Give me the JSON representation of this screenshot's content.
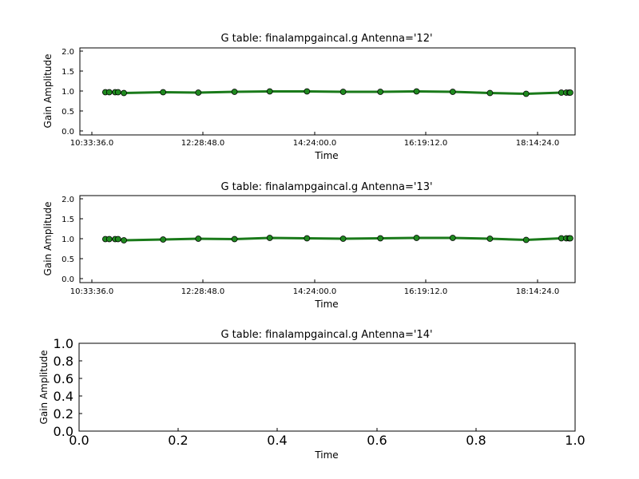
{
  "chart_data": [
    {
      "type": "line",
      "title": "G table: finalampgaincal.g      Antenna='12'",
      "xlabel": "Time",
      "ylabel": "Gain Amplitude",
      "ylim": [
        -0.1,
        2.1
      ],
      "y_ticks": [
        "0.0",
        "0.5",
        "1.0",
        "1.5",
        "2.0"
      ],
      "x_tick_labels": [
        "10:33:36.0",
        "12:28:48.0",
        "14:24:00.0",
        "16:19:12.0",
        "18:14:24.0"
      ],
      "xlim": [
        "10:13:00",
        "18:39:00"
      ],
      "grid": false,
      "line_color": "#1a7a1a",
      "marker_color": "#1f8a1f",
      "x": [
        "10:39:00",
        "10:43:00",
        "10:49:00",
        "10:52:00",
        "10:58:00",
        "11:38:00",
        "12:14:00",
        "12:51:00",
        "13:27:00",
        "14:05:00",
        "14:42:00",
        "15:20:00",
        "15:57:00",
        "16:34:00",
        "17:12:00",
        "17:49:00",
        "18:25:00",
        "18:30:00",
        "18:33:00",
        "18:34:00"
      ],
      "series": [
        {
          "values": [
            0.98,
            0.98,
            0.98,
            0.98,
            0.96,
            0.98,
            0.97,
            0.99,
            1.0,
            1.0,
            0.99,
            0.99,
            1.0,
            0.99,
            0.96,
            0.94,
            0.97,
            0.97,
            0.97,
            0.97
          ]
        }
      ]
    },
    {
      "type": "line",
      "title": "G table: finalampgaincal.g      Antenna='13'",
      "xlabel": "Time",
      "ylabel": "Gain Amplitude",
      "ylim": [
        -0.1,
        2.1
      ],
      "y_ticks": [
        "0.0",
        "0.5",
        "1.0",
        "1.5",
        "2.0"
      ],
      "x_tick_labels": [
        "10:33:36.0",
        "12:28:48.0",
        "14:24:00.0",
        "16:19:12.0",
        "18:14:24.0"
      ],
      "xlim": [
        "10:13:00",
        "18:39:00"
      ],
      "grid": false,
      "line_color": "#1a7a1a",
      "marker_color": "#1f8a1f",
      "x": [
        "10:39:00",
        "10:43:00",
        "10:49:00",
        "10:52:00",
        "10:58:00",
        "11:38:00",
        "12:14:00",
        "12:51:00",
        "13:27:00",
        "14:05:00",
        "14:42:00",
        "15:20:00",
        "15:57:00",
        "16:34:00",
        "17:12:00",
        "17:49:00",
        "18:25:00",
        "18:30:00",
        "18:33:00",
        "18:34:00"
      ],
      "series": [
        {
          "values": [
            1.0,
            1.0,
            1.0,
            1.0,
            0.97,
            0.99,
            1.01,
            1.0,
            1.03,
            1.02,
            1.01,
            1.02,
            1.03,
            1.03,
            1.01,
            0.98,
            1.02,
            1.02,
            1.02,
            1.02
          ]
        }
      ]
    },
    {
      "type": "line",
      "title": "G table: finalampgaincal.g      Antenna='14'",
      "xlabel": "Time",
      "ylabel": "Gain Amplitude",
      "xlim": [
        0.0,
        1.0
      ],
      "ylim": [
        0.0,
        1.0
      ],
      "x_ticks": [
        "0.0",
        "0.2",
        "0.4",
        "0.6",
        "0.8",
        "1.0"
      ],
      "y_ticks": [
        "0.0",
        "0.2",
        "0.4",
        "0.6",
        "0.8",
        "1.0"
      ],
      "grid": false,
      "series": []
    }
  ]
}
